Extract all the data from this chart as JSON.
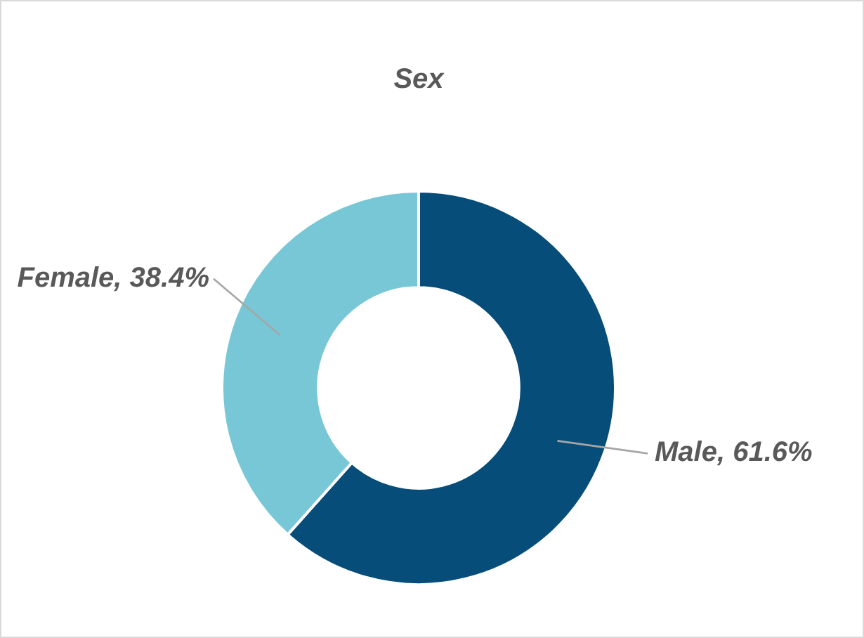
{
  "chart_data": {
    "type": "donut",
    "title": "Sex",
    "categories": [
      "Male",
      "Female"
    ],
    "values": [
      61.6,
      38.4
    ],
    "value_labels": [
      "61.6%",
      "38.4%"
    ],
    "colors": [
      "#064d7a",
      "#78c7d7"
    ],
    "legend": false
  }
}
